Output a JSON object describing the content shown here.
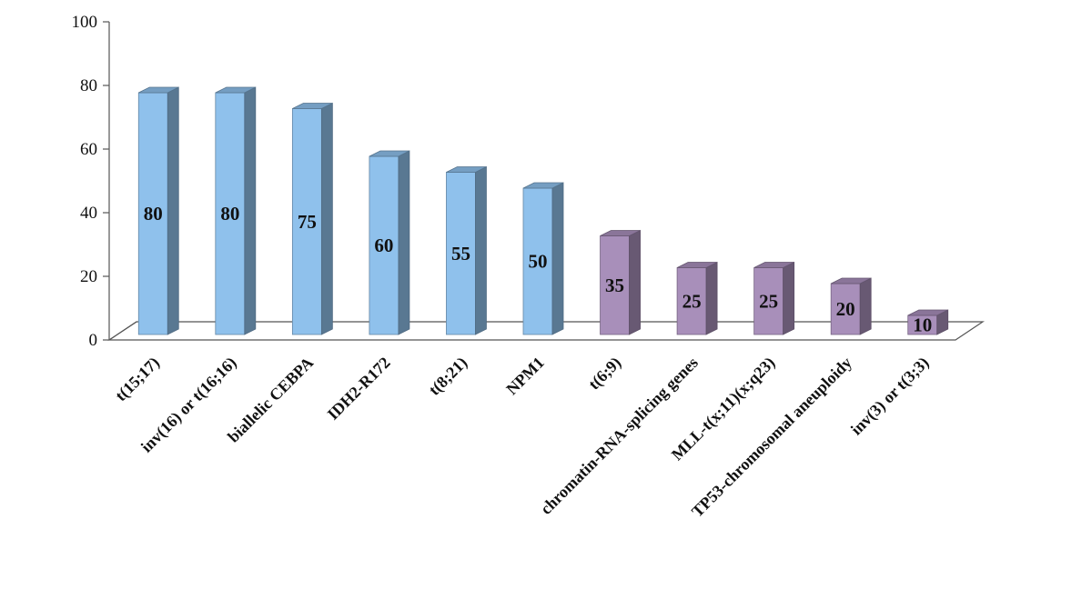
{
  "chart_data": {
    "type": "bar",
    "categories": [
      "t(15;17)",
      "inv(16) or t(16;16)",
      "biallelic CEBPA",
      "IDH2-R172",
      "t(8;21)",
      "NPM1",
      "t(6;9)",
      "chromatin-RNA-splicing genes",
      "MLL-t(x;11)(x;q23)",
      "TP53-chromosomal aneuploidy",
      "inv(3) or t(3;3)"
    ],
    "values": [
      80,
      80,
      75,
      60,
      55,
      50,
      35,
      25,
      25,
      20,
      10
    ],
    "data_labels": [
      "80",
      "80",
      "75",
      "60",
      "55",
      "50",
      "35",
      "25",
      "25",
      "20",
      "10"
    ],
    "ylim": [
      0,
      100
    ],
    "yticks": [
      0,
      20,
      40,
      60,
      80,
      100
    ],
    "ytick_labels": [
      "0",
      "20",
      "40",
      "60",
      "80",
      "100"
    ],
    "bar_colors": [
      "#8fc1ec",
      "#8fc1ec",
      "#8fc1ec",
      "#8fc1ec",
      "#8fc1ec",
      "#8fc1ec",
      "#a88fba",
      "#a88fba",
      "#a88fba",
      "#a88fba",
      "#a88fba"
    ],
    "grid": false,
    "legend": "none",
    "style": "3d-column"
  }
}
